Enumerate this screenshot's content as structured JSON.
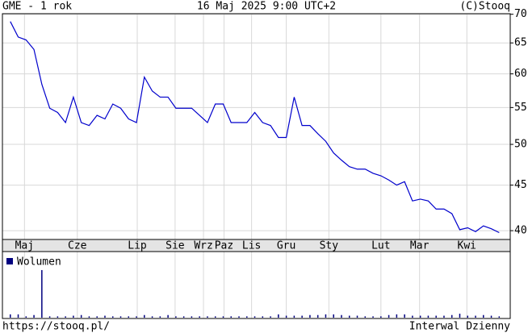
{
  "header": {
    "left": "GME - 1 rok",
    "center": "16 Maj 2025 9:00 UTC+2",
    "right": "(C)Stooq"
  },
  "footer": {
    "left": "https://stooq.pl/",
    "right": "Interwal Dzienny"
  },
  "chart_data": [
    {
      "type": "line",
      "log_scale": true,
      "grid": true,
      "x": [
        0,
        1,
        2,
        3,
        4,
        5,
        6,
        7,
        8,
        9,
        10,
        11,
        12,
        13,
        14,
        15,
        16,
        17,
        18,
        19,
        20,
        21,
        22,
        23,
        24,
        25,
        26,
        27,
        28,
        29,
        30,
        31,
        32,
        33,
        34,
        35,
        36,
        37,
        38,
        39,
        40,
        41,
        42,
        43,
        44,
        45,
        46,
        47,
        48,
        49,
        50,
        51,
        52,
        53,
        54,
        55,
        56,
        57,
        58,
        59,
        60,
        61,
        62
      ],
      "series": [
        {
          "name": "GME",
          "color": "#0000cc",
          "values": [
            68.7,
            66.0,
            65.5,
            63.9,
            58.4,
            54.9,
            54.3,
            52.9,
            56.5,
            52.9,
            52.5,
            53.9,
            53.4,
            55.5,
            54.9,
            53.4,
            52.9,
            59.5,
            57.4,
            56.5,
            56.5,
            54.9,
            54.9,
            54.9,
            53.9,
            52.9,
            55.5,
            55.5,
            52.9,
            52.9,
            52.9,
            54.3,
            52.9,
            52.5,
            50.9,
            50.9,
            56.5,
            52.5,
            52.5,
            51.4,
            50.4,
            48.9,
            48.0,
            47.2,
            46.9,
            46.9,
            46.4,
            46.1,
            45.6,
            45.0,
            45.4,
            43.2,
            43.4,
            43.2,
            42.3,
            42.3,
            41.8,
            40.1,
            40.3,
            39.9,
            40.5,
            40.2,
            39.8
          ]
        }
      ],
      "xlim": [
        -1,
        63.4
      ],
      "xticks": [
        {
          "value": 1.8,
          "label": "Maj"
        },
        {
          "value": 8.5,
          "label": "Cze"
        },
        {
          "value": 16.1,
          "label": "Lip"
        },
        {
          "value": 20.9,
          "label": "Sie"
        },
        {
          "value": 24.5,
          "label": "Wrz"
        },
        {
          "value": 27.1,
          "label": "Paz"
        },
        {
          "value": 30.6,
          "label": "Lis"
        },
        {
          "value": 35.0,
          "label": "Gru"
        },
        {
          "value": 40.4,
          "label": "Sty"
        },
        {
          "value": 47.0,
          "label": "Lut"
        },
        {
          "value": 51.9,
          "label": "Mar"
        },
        {
          "value": 57.9,
          "label": "Kwi"
        }
      ],
      "ylim": [
        39.1,
        70.1
      ],
      "yticks": [
        40,
        45,
        50,
        55,
        60,
        65,
        70
      ]
    },
    {
      "type": "bar",
      "x": [
        0,
        1,
        2,
        3,
        4,
        5,
        6,
        7,
        8,
        9,
        10,
        11,
        12,
        13,
        14,
        15,
        16,
        17,
        18,
        19,
        20,
        21,
        22,
        23,
        24,
        25,
        26,
        27,
        28,
        29,
        30,
        31,
        32,
        33,
        34,
        35,
        36,
        37,
        38,
        39,
        40,
        41,
        42,
        43,
        44,
        45,
        46,
        47,
        48,
        49,
        50,
        51,
        52,
        53,
        54,
        55,
        56,
        57,
        58,
        59,
        60,
        61,
        62
      ],
      "series": [
        {
          "name": "Wolumen",
          "color": "#000080",
          "values": [
            5,
            5,
            2,
            4,
            72,
            2,
            2,
            2,
            3,
            4,
            2,
            2,
            3,
            2,
            2,
            2,
            2,
            4,
            2,
            2,
            4,
            2,
            2,
            2,
            2,
            2,
            2,
            2,
            2,
            2,
            2,
            2,
            2,
            2,
            5,
            3,
            3,
            3,
            4,
            4,
            5,
            5,
            4,
            3,
            3,
            2,
            2,
            2,
            4,
            5,
            5,
            3,
            3,
            3,
            3,
            3,
            4,
            6,
            3,
            3,
            4,
            3,
            2
          ]
        }
      ],
      "xlim": [
        -1,
        63.4
      ],
      "ylim": [
        0,
        100
      ]
    }
  ]
}
